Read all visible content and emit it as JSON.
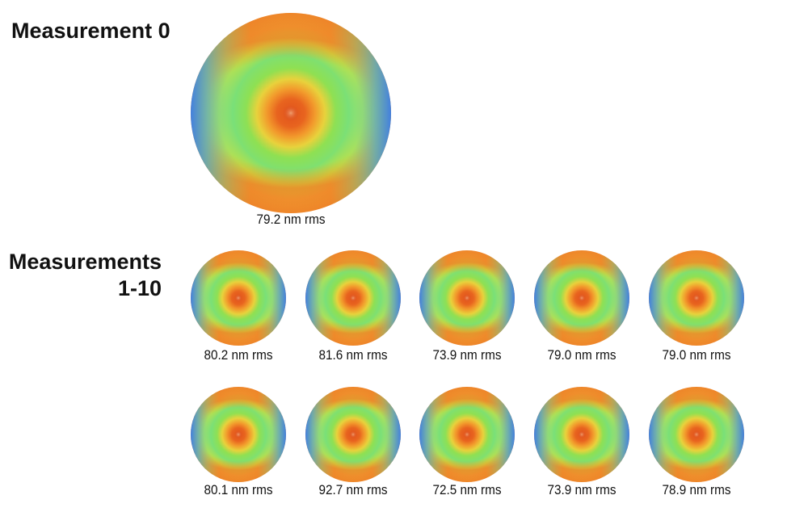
{
  "headings": {
    "measurement0": "Measurement 0",
    "measurements_line1": "Measurements",
    "measurements_line2": "1-10"
  },
  "colormap": {
    "high": "#d9461a",
    "mid": "#f59a2a",
    "low_mid": "#8fe04a",
    "low": "#3a7fe0"
  },
  "maps": [
    {
      "id": "measurement-0",
      "rms_label": "79.2 nm rms",
      "rms_nm": 79.2
    },
    {
      "id": "measurement-1",
      "rms_label": "80.2 nm rms",
      "rms_nm": 80.2
    },
    {
      "id": "measurement-2",
      "rms_label": "81.6 nm rms",
      "rms_nm": 81.6
    },
    {
      "id": "measurement-3",
      "rms_label": "73.9 nm rms",
      "rms_nm": 73.9
    },
    {
      "id": "measurement-4",
      "rms_label": "79.0 nm rms",
      "rms_nm": 79.0
    },
    {
      "id": "measurement-5",
      "rms_label": "79.0 nm rms",
      "rms_nm": 79.0
    },
    {
      "id": "measurement-6",
      "rms_label": "80.1 nm rms",
      "rms_nm": 80.1
    },
    {
      "id": "measurement-7",
      "rms_label": "92.7 nm rms",
      "rms_nm": 92.7
    },
    {
      "id": "measurement-8",
      "rms_label": "72.5 nm rms",
      "rms_nm": 72.5
    },
    {
      "id": "measurement-9",
      "rms_label": "73.9 nm rms",
      "rms_nm": 73.9
    },
    {
      "id": "measurement-10",
      "rms_label": "78.9 nm rms",
      "rms_nm": 78.9
    }
  ]
}
